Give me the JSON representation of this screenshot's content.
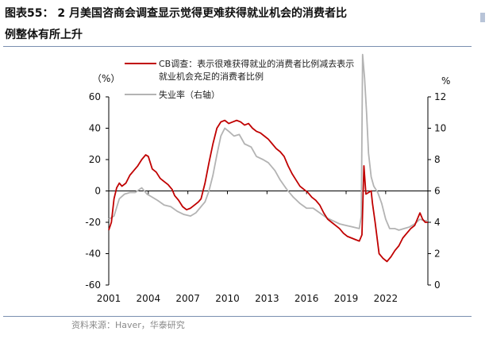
{
  "title": {
    "line1": "图表55： 2 月美国咨商会调查显示觉得更难获得就业机会的消费者比",
    "line2": "例整体有所上升"
  },
  "source": "资料来源：Haver，华泰研究",
  "chart_data": {
    "type": "line",
    "left_unit": "（%）",
    "right_unit": "%",
    "x_ticks": [
      "2001",
      "2004",
      "2007",
      "2010",
      "2013",
      "2016",
      "2019",
      "2022"
    ],
    "x_range": [
      2001.0,
      2025.2
    ],
    "left_axis": {
      "range": [
        -60,
        60
      ],
      "ticks": [
        "60",
        "40",
        "20",
        "0",
        "-20",
        "-40",
        "-60"
      ]
    },
    "right_axis": {
      "range": [
        0,
        12
      ],
      "ticks": [
        "12",
        "10",
        "8",
        "6",
        "4",
        "2",
        "0"
      ]
    },
    "legend_position": "top",
    "grid": false,
    "colors": {
      "cb": "#c00000",
      "unemp": "#b3b3b3",
      "axis": "#000000"
    },
    "series": [
      {
        "name": "CB调查：表示很难获得就业的消费者比例减去表示就业机会充足的消费者比例",
        "legend_line1": "CB调查：表示很难获得就业的消费者比例减去表示",
        "legend_line2": "就业机会充足的消费者比例",
        "axis": "left",
        "points": [
          [
            2001.0,
            -25
          ],
          [
            2001.2,
            -20
          ],
          [
            2001.4,
            -5
          ],
          [
            2001.6,
            2
          ],
          [
            2001.8,
            5
          ],
          [
            2002.0,
            3
          ],
          [
            2002.3,
            5
          ],
          [
            2002.6,
            10
          ],
          [
            2002.9,
            13
          ],
          [
            2003.2,
            16
          ],
          [
            2003.5,
            20
          ],
          [
            2003.8,
            23
          ],
          [
            2004.0,
            22
          ],
          [
            2004.3,
            14
          ],
          [
            2004.6,
            12
          ],
          [
            2004.9,
            8
          ],
          [
            2005.2,
            6
          ],
          [
            2005.5,
            4
          ],
          [
            2005.8,
            1
          ],
          [
            2006.0,
            -3
          ],
          [
            2006.3,
            -6
          ],
          [
            2006.6,
            -10
          ],
          [
            2006.9,
            -12
          ],
          [
            2007.2,
            -11
          ],
          [
            2007.5,
            -9
          ],
          [
            2007.8,
            -7
          ],
          [
            2008.0,
            -5
          ],
          [
            2008.3,
            5
          ],
          [
            2008.6,
            18
          ],
          [
            2008.9,
            30
          ],
          [
            2009.2,
            40
          ],
          [
            2009.5,
            44
          ],
          [
            2009.8,
            45
          ],
          [
            2010.1,
            43
          ],
          [
            2010.4,
            44
          ],
          [
            2010.7,
            45
          ],
          [
            2011.0,
            44
          ],
          [
            2011.3,
            42
          ],
          [
            2011.6,
            43
          ],
          [
            2011.9,
            40
          ],
          [
            2012.2,
            38
          ],
          [
            2012.5,
            37
          ],
          [
            2012.8,
            35
          ],
          [
            2013.1,
            33
          ],
          [
            2013.4,
            30
          ],
          [
            2013.7,
            27
          ],
          [
            2014.0,
            25
          ],
          [
            2014.3,
            22
          ],
          [
            2014.6,
            16
          ],
          [
            2014.9,
            11
          ],
          [
            2015.2,
            7
          ],
          [
            2015.5,
            3
          ],
          [
            2015.8,
            1
          ],
          [
            2016.1,
            -1
          ],
          [
            2016.4,
            -4
          ],
          [
            2016.7,
            -6
          ],
          [
            2017.0,
            -9
          ],
          [
            2017.3,
            -14
          ],
          [
            2017.6,
            -18
          ],
          [
            2017.9,
            -20
          ],
          [
            2018.2,
            -22
          ],
          [
            2018.5,
            -24
          ],
          [
            2018.8,
            -27
          ],
          [
            2019.1,
            -29
          ],
          [
            2019.4,
            -30
          ],
          [
            2019.7,
            -31
          ],
          [
            2020.0,
            -32
          ],
          [
            2020.2,
            -28
          ],
          [
            2020.35,
            16
          ],
          [
            2020.5,
            -2
          ],
          [
            2020.7,
            -1
          ],
          [
            2020.9,
            0
          ],
          [
            2021.0,
            -8
          ],
          [
            2021.2,
            -20
          ],
          [
            2021.5,
            -40
          ],
          [
            2021.8,
            -43
          ],
          [
            2022.1,
            -45
          ],
          [
            2022.4,
            -42
          ],
          [
            2022.7,
            -38
          ],
          [
            2023.0,
            -35
          ],
          [
            2023.3,
            -30
          ],
          [
            2023.6,
            -27
          ],
          [
            2023.9,
            -24
          ],
          [
            2024.2,
            -22
          ],
          [
            2024.4,
            -18
          ],
          [
            2024.6,
            -14
          ],
          [
            2024.8,
            -18
          ],
          [
            2025.0,
            -20
          ],
          [
            2025.2,
            -20
          ]
        ]
      },
      {
        "name": "失业率（右轴）",
        "legend_line1": "失业率（右轴）",
        "axis": "right",
        "points": [
          [
            2001.0,
            4.2
          ],
          [
            2001.4,
            4.4
          ],
          [
            2001.8,
            5.5
          ],
          [
            2002.2,
            5.8
          ],
          [
            2002.6,
            5.9
          ],
          [
            2003.0,
            5.9
          ],
          [
            2003.5,
            6.2
          ],
          [
            2003.9,
            5.8
          ],
          [
            2004.3,
            5.6
          ],
          [
            2004.7,
            5.4
          ],
          [
            2005.2,
            5.1
          ],
          [
            2005.7,
            5.0
          ],
          [
            2006.2,
            4.7
          ],
          [
            2006.7,
            4.5
          ],
          [
            2007.2,
            4.4
          ],
          [
            2007.6,
            4.6
          ],
          [
            2008.0,
            5.0
          ],
          [
            2008.3,
            5.3
          ],
          [
            2008.6,
            6.0
          ],
          [
            2008.9,
            7.0
          ],
          [
            2009.2,
            8.3
          ],
          [
            2009.5,
            9.5
          ],
          [
            2009.8,
            10.0
          ],
          [
            2010.1,
            9.8
          ],
          [
            2010.5,
            9.5
          ],
          [
            2010.9,
            9.6
          ],
          [
            2011.3,
            9.0
          ],
          [
            2011.8,
            8.8
          ],
          [
            2012.2,
            8.2
          ],
          [
            2012.7,
            8.0
          ],
          [
            2013.1,
            7.8
          ],
          [
            2013.6,
            7.3
          ],
          [
            2014.0,
            6.7
          ],
          [
            2014.5,
            6.1
          ],
          [
            2015.0,
            5.6
          ],
          [
            2015.5,
            5.2
          ],
          [
            2016.0,
            4.9
          ],
          [
            2016.5,
            4.9
          ],
          [
            2017.0,
            4.6
          ],
          [
            2017.5,
            4.3
          ],
          [
            2018.0,
            4.1
          ],
          [
            2018.5,
            3.9
          ],
          [
            2019.0,
            3.8
          ],
          [
            2019.5,
            3.7
          ],
          [
            2020.0,
            3.6
          ],
          [
            2020.15,
            4.4
          ],
          [
            2020.25,
            14.7
          ],
          [
            2020.4,
            13.2
          ],
          [
            2020.55,
            11.0
          ],
          [
            2020.7,
            8.4
          ],
          [
            2020.9,
            6.9
          ],
          [
            2021.1,
            6.3
          ],
          [
            2021.4,
            5.9
          ],
          [
            2021.7,
            5.2
          ],
          [
            2022.0,
            4.2
          ],
          [
            2022.3,
            3.6
          ],
          [
            2022.7,
            3.6
          ],
          [
            2023.0,
            3.5
          ],
          [
            2023.4,
            3.6
          ],
          [
            2023.8,
            3.7
          ],
          [
            2024.2,
            3.9
          ],
          [
            2024.6,
            4.2
          ],
          [
            2024.9,
            4.1
          ],
          [
            2025.2,
            4.1
          ]
        ]
      }
    ]
  }
}
